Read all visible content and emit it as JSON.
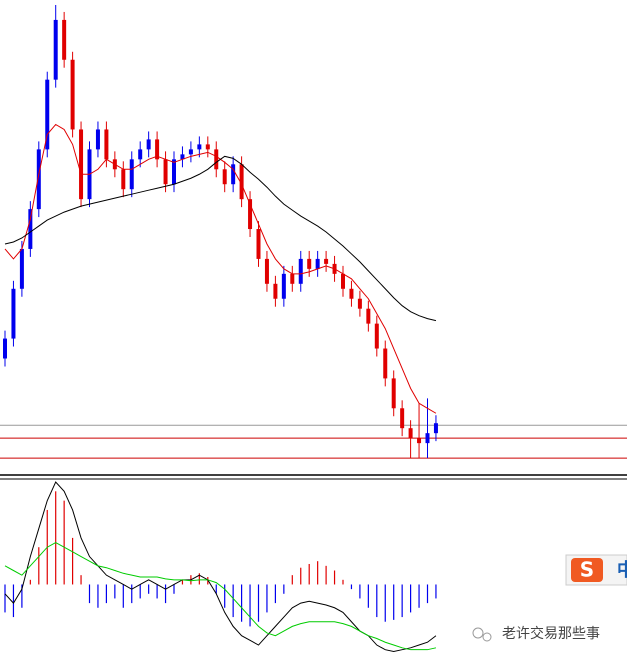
{
  "chart_data": [
    {
      "type": "candlestick",
      "ylim": [
        0,
        475
      ],
      "up_color": "#0000ee",
      "down_color": "#e00000",
      "open": [
        115,
        135,
        185,
        225,
        265,
        325,
        395,
        455,
        415,
        345,
        275,
        325,
        345,
        315,
        305,
        285,
        315,
        325,
        335,
        315,
        290,
        315,
        320,
        325,
        330,
        325,
        305,
        290,
        310,
        275,
        245,
        215,
        190,
        175,
        200,
        190,
        215,
        205,
        215,
        210,
        200,
        185,
        175,
        165,
        150,
        125,
        95,
        65,
        45,
        35,
        30,
        40
      ],
      "high": [
        143,
        193,
        233,
        273,
        333,
        403,
        470,
        463,
        423,
        353,
        333,
        353,
        353,
        323,
        313,
        323,
        333,
        343,
        343,
        323,
        323,
        328,
        333,
        338,
        338,
        333,
        313,
        318,
        318,
        283,
        253,
        223,
        198,
        208,
        208,
        223,
        223,
        223,
        223,
        218,
        208,
        193,
        183,
        173,
        158,
        133,
        103,
        73,
        53,
        70,
        75,
        58
      ],
      "low": [
        107,
        127,
        177,
        217,
        257,
        317,
        387,
        407,
        337,
        267,
        267,
        317,
        307,
        297,
        277,
        277,
        307,
        317,
        307,
        282,
        282,
        307,
        312,
        317,
        317,
        297,
        282,
        282,
        267,
        237,
        207,
        182,
        167,
        167,
        182,
        182,
        197,
        197,
        202,
        192,
        177,
        167,
        157,
        142,
        117,
        87,
        57,
        37,
        15,
        15,
        15,
        32
      ],
      "close": [
        135,
        185,
        225,
        265,
        325,
        395,
        455,
        415,
        345,
        275,
        325,
        345,
        315,
        305,
        285,
        315,
        325,
        335,
        315,
        290,
        315,
        320,
        325,
        330,
        325,
        305,
        290,
        310,
        275,
        245,
        215,
        190,
        175,
        200,
        190,
        215,
        205,
        215,
        210,
        200,
        185,
        175,
        165,
        150,
        125,
        95,
        65,
        45,
        35,
        30,
        40,
        50
      ],
      "lines": [
        {
          "color": "#e00000",
          "values": [
            225,
            215,
            225,
            255,
            300,
            340,
            350,
            345,
            330,
            300,
            300,
            305,
            315,
            310,
            305,
            305,
            310,
            315,
            318,
            315,
            312,
            315,
            318,
            320,
            322,
            318,
            312,
            305,
            290,
            270,
            250,
            230,
            215,
            205,
            200,
            200,
            202,
            205,
            208,
            205,
            200,
            195,
            185,
            175,
            160,
            145,
            125,
            105,
            85,
            70,
            65,
            60
          ]
        },
        {
          "color": "#000000",
          "values": [
            230,
            232,
            236,
            242,
            248,
            254,
            258,
            262,
            265,
            268,
            270,
            272,
            274,
            276,
            278,
            280,
            282,
            284,
            286,
            288,
            290,
            293,
            296,
            300,
            305,
            312,
            318,
            316,
            310,
            302,
            295,
            287,
            278,
            270,
            264,
            258,
            253,
            248,
            242,
            235,
            228,
            220,
            212,
            203,
            194,
            185,
            176,
            168,
            162,
            158,
            155,
            153
          ]
        }
      ],
      "hlines": [
        {
          "value": 48,
          "color": "#999999"
        },
        {
          "value": 35,
          "color": "#cc0000"
        },
        {
          "value": 15,
          "color": "#cc0000"
        }
      ]
    },
    {
      "type": "macd",
      "ylim": [
        -80,
        110
      ],
      "up_color": "#e00000",
      "down_color": "#0000ee",
      "histogram": [
        -30,
        -35,
        -25,
        5,
        40,
        80,
        100,
        90,
        50,
        10,
        -20,
        -25,
        -20,
        -15,
        -25,
        -20,
        -15,
        -10,
        -15,
        -20,
        -10,
        5,
        10,
        12,
        8,
        -10,
        -25,
        -35,
        -40,
        -45,
        -40,
        -30,
        -20,
        -10,
        10,
        18,
        22,
        25,
        20,
        15,
        5,
        -5,
        -15,
        -25,
        -35,
        -40,
        -38,
        -35,
        -30,
        -25,
        -20,
        -15
      ],
      "lines": [
        {
          "color": "#000000",
          "values": [
            -10,
            -20,
            -5,
            30,
            60,
            90,
            110,
            100,
            80,
            50,
            30,
            20,
            10,
            5,
            0,
            -5,
            0,
            5,
            0,
            -5,
            0,
            5,
            5,
            10,
            5,
            -10,
            -30,
            -45,
            -55,
            -60,
            -65,
            -55,
            -45,
            -35,
            -25,
            -20,
            -18,
            -20,
            -22,
            -25,
            -30,
            -40,
            -50,
            -55,
            -65,
            -70,
            -72,
            -70,
            -68,
            -65,
            -62,
            -55
          ]
        },
        {
          "color": "#00cc00",
          "values": [
            20,
            15,
            10,
            20,
            30,
            40,
            45,
            40,
            35,
            30,
            25,
            20,
            18,
            15,
            12,
            10,
            8,
            8,
            8,
            6,
            5,
            5,
            4,
            5,
            5,
            2,
            -5,
            -15,
            -25,
            -35,
            -45,
            -52,
            -55,
            -50,
            -45,
            -42,
            -40,
            -40,
            -40,
            -40,
            -42,
            -45,
            -50,
            -55,
            -58,
            -62,
            -65,
            -68,
            -70,
            -70,
            -70,
            -68
          ]
        }
      ]
    }
  ],
  "logo": "S",
  "brand": "中",
  "watermark": "老许交易那些事"
}
